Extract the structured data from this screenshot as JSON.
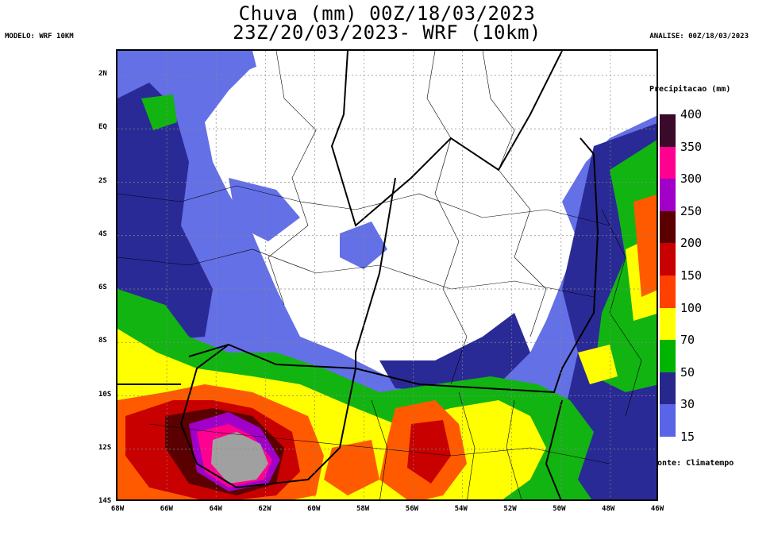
{
  "header": {
    "title_line_1": "Chuva (mm) 00Z/18/03/2023",
    "title_line_2": "23Z/20/03/2023- WRF (10km)",
    "model": "MODELO: WRF 10KM",
    "analysis": "ANALISE: 00Z/18/03/2023",
    "source": "onte: Climatempo"
  },
  "axes": {
    "lon_ticks": [
      "68W",
      "66W",
      "64W",
      "62W",
      "60W",
      "58W",
      "56W",
      "54W",
      "52W",
      "50W",
      "48W",
      "46W"
    ],
    "lat_ticks": [
      "2N",
      "EQ",
      "2S",
      "4S",
      "6S",
      "8S",
      "10S",
      "12S",
      "14S"
    ]
  },
  "legend": {
    "title": "Precipitacao (mm)",
    "levels": [
      "400",
      "350",
      "300",
      "250",
      "200",
      "150",
      "100",
      "70",
      "50",
      "30",
      "15"
    ],
    "colors": [
      "#3a0a2a",
      "#ff0090",
      "#a000c8",
      "#5a0000",
      "#c80000",
      "#ff4000",
      "#ffff00",
      "#00b400",
      "#28288c",
      "#5a64e6",
      "#ffffff"
    ]
  },
  "map_colors": {
    "light_blue": "#6470e6",
    "dark_blue": "#2a2a96",
    "green": "#12b412",
    "yellow": "#ffff00",
    "orange": "#ff5a00",
    "red": "#c80000",
    "dark_red": "#5a0000",
    "magenta": "#ff0090",
    "purple": "#a000c8",
    "grey": "#a0a0a0"
  }
}
